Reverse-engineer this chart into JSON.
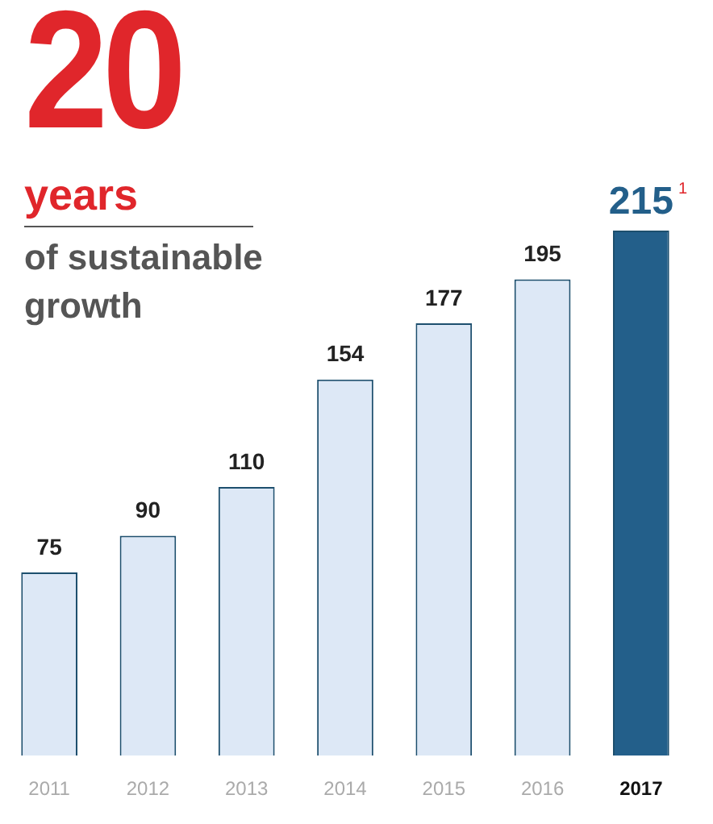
{
  "chart_data": {
    "type": "bar",
    "title": "20 years",
    "subtitle": "of sustainable growth",
    "categories": [
      "2011",
      "2012",
      "2013",
      "2014",
      "2015",
      "2016",
      "2017"
    ],
    "values": [
      75,
      90,
      110,
      154,
      177,
      195,
      215
    ],
    "colors": [
      "#dde8f6",
      "#dde8f6",
      "#dde8f6",
      "#dde8f6",
      "#dde8f6",
      "#dde8f6",
      "#235f8a"
    ],
    "value_labels": [
      "75",
      "90",
      "110",
      "154",
      "177",
      "195",
      "215$^{1}$"
    ],
    "tick_labels": "x",
    "grid": false,
    "legend": false
  }
}
